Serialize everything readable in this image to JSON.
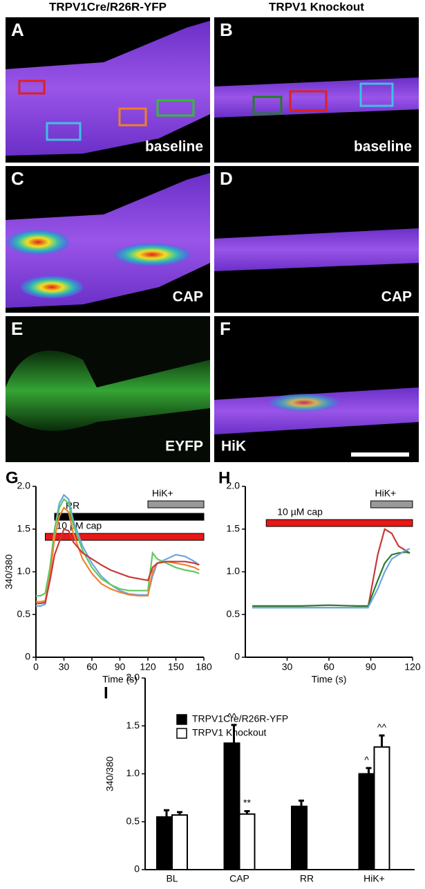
{
  "headers": [
    "TRPV1Cre/R26R-YFP",
    "TRPV1 Knockout"
  ],
  "panels": [
    {
      "letter": "A",
      "label": "baseline"
    },
    {
      "letter": "B",
      "label": "baseline"
    },
    {
      "letter": "C",
      "label": "CAP"
    },
    {
      "letter": "D",
      "label": "CAP"
    },
    {
      "letter": "E",
      "label": "EYFP"
    },
    {
      "letter": "F",
      "label": "HiK"
    }
  ],
  "chart_data": [
    {
      "type": "line",
      "panel_label": "G",
      "ylabel": "340/380",
      "xlabel": "Time (s)",
      "xlim": [
        0,
        180
      ],
      "xticks": [
        0,
        30,
        60,
        90,
        120,
        150,
        180
      ],
      "ylim": [
        0,
        2
      ],
      "yticks": [
        0,
        0.5,
        {
          "value": 1,
          "label": "1.0"
        },
        1.5,
        {
          "value": 2,
          "label": "2.0"
        }
      ],
      "bars": [
        {
          "label": "HiK+",
          "start": 120,
          "end": 180,
          "color": "#999999"
        },
        {
          "label": "RR",
          "start": 20,
          "end": 180,
          "color": "#000000"
        },
        {
          "label": "10 µM cap",
          "start": 10,
          "end": 180,
          "color": "#e81818"
        }
      ],
      "x": [
        0,
        5,
        10,
        15,
        20,
        25,
        30,
        35,
        40,
        50,
        60,
        70,
        80,
        90,
        100,
        110,
        120,
        125,
        130,
        140,
        150,
        160,
        170,
        175
      ],
      "series": [
        {
          "color": "#6aa6e0",
          "values": [
            0.6,
            0.6,
            0.62,
            1.0,
            1.5,
            1.8,
            1.9,
            1.85,
            1.6,
            1.3,
            1.1,
            0.95,
            0.85,
            0.78,
            0.74,
            0.73,
            0.73,
            0.95,
            1.1,
            1.15,
            1.2,
            1.18,
            1.12,
            1.08
          ]
        },
        {
          "color": "#60c860",
          "values": [
            0.72,
            0.72,
            0.75,
            1.05,
            1.5,
            1.75,
            1.85,
            1.8,
            1.55,
            1.25,
            1.05,
            0.92,
            0.85,
            0.8,
            0.78,
            0.78,
            0.78,
            1.22,
            1.15,
            1.1,
            1.05,
            1.02,
            1.0,
            0.98
          ]
        },
        {
          "color": "#f08030",
          "values": [
            0.65,
            0.65,
            0.66,
            0.95,
            1.4,
            1.65,
            1.75,
            1.7,
            1.45,
            1.15,
            0.98,
            0.86,
            0.8,
            0.76,
            0.73,
            0.72,
            0.72,
            1.0,
            1.1,
            1.12,
            1.1,
            1.08,
            1.05,
            1.02
          ]
        },
        {
          "color": "#c83838",
          "values": [
            0.63,
            0.63,
            0.64,
            0.9,
            1.2,
            1.35,
            1.5,
            1.48,
            1.35,
            1.22,
            1.15,
            1.08,
            1.02,
            0.98,
            0.94,
            0.92,
            0.9,
            1.05,
            1.1,
            1.12,
            1.12,
            1.12,
            1.1,
            1.08
          ]
        }
      ]
    },
    {
      "type": "line",
      "panel_label": "H",
      "xlabel": "Time (s)",
      "xlim": [
        0,
        120
      ],
      "xticks": [
        30,
        60,
        90,
        120
      ],
      "ylim": [
        0,
        2
      ],
      "yticks": [
        0,
        0.5,
        {
          "value": 1,
          "label": "1.0"
        },
        1.5,
        {
          "value": 2,
          "label": "2.0"
        }
      ],
      "bars": [
        {
          "label": "HiK+",
          "start": 90,
          "end": 120,
          "color": "#999999"
        },
        {
          "label": "10 µM cap",
          "start": 15,
          "end": 120,
          "color": "#e81818"
        }
      ],
      "x": [
        5,
        20,
        40,
        60,
        80,
        88,
        95,
        100,
        105,
        110,
        115,
        118
      ],
      "series": [
        {
          "color": "#c83838",
          "values": [
            0.58,
            0.58,
            0.58,
            0.58,
            0.58,
            0.58,
            1.2,
            1.5,
            1.45,
            1.3,
            1.25,
            1.22
          ]
        },
        {
          "color": "#2a7a2a",
          "values": [
            0.6,
            0.6,
            0.6,
            0.61,
            0.6,
            0.6,
            0.9,
            1.1,
            1.2,
            1.22,
            1.23,
            1.22
          ]
        },
        {
          "color": "#6aa6e0",
          "values": [
            0.58,
            0.58,
            0.58,
            0.58,
            0.58,
            0.58,
            0.8,
            1.0,
            1.15,
            1.2,
            1.25,
            1.27
          ]
        }
      ]
    },
    {
      "type": "bar",
      "panel_label": "I",
      "ylabel": "340/380",
      "ylim": [
        0,
        2
      ],
      "yticks": [
        0,
        0.5,
        {
          "value": 1,
          "label": "1.0"
        },
        1.5,
        {
          "value": 2,
          "label": "2.0"
        }
      ],
      "categories": [
        "BL",
        "CAP",
        "RR",
        "HiK+"
      ],
      "series": [
        {
          "name": "TRPV1Cre/R26R-YFP",
          "color": "#000000",
          "values": [
            0.55,
            1.32,
            0.66,
            1.0
          ],
          "errors": [
            0.07,
            0.19,
            0.06,
            0.06
          ],
          "annotations": [
            null,
            "^^",
            null,
            "^"
          ]
        },
        {
          "name": "TRPV1 Knockout",
          "color": "#ffffff",
          "values": [
            0.57,
            0.58,
            null,
            1.28
          ],
          "errors": [
            0.03,
            0.03,
            null,
            0.12
          ],
          "annotations": [
            null,
            "**",
            null,
            "^^"
          ]
        }
      ]
    }
  ]
}
